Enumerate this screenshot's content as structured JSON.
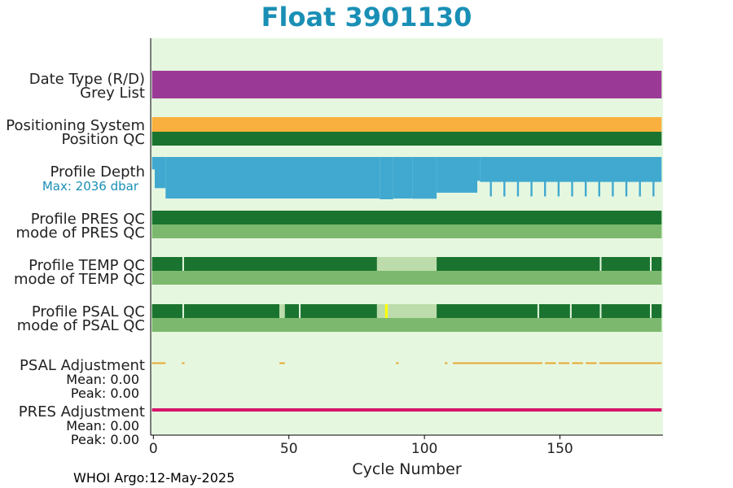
{
  "title": "Float 3901130",
  "footer": "WHOI Argo:12-May-2025",
  "colors": {
    "background": "#e6f7e0",
    "grey_list": "#9b3a96",
    "positioning_system": "#f9b03e",
    "qc_good": "#1a7430",
    "qc_mode": "#7cb96e",
    "qc_light": "#bddcab",
    "qc_flag": "#ffff00",
    "profile_depth": "#41a9d0",
    "psal_adjustment": "#e8a830",
    "pres_adjustment": "#d6156b",
    "accent": "#1a8fb5"
  },
  "chart_data": {
    "type": "bar",
    "title": "Float 3901130",
    "xlabel": "Cycle Number",
    "xlim": [
      -1,
      188
    ],
    "xticks": [
      0,
      50,
      100,
      150
    ],
    "depth_annotation": "Max: 2036 dbar",
    "max_depth_dbar": 2036,
    "rows": [
      {
        "id": "date_type",
        "label": "Date Type (R/D)",
        "status": "blank"
      },
      {
        "id": "grey_list",
        "label": "Grey List",
        "color_key": "grey_list",
        "segments": [
          {
            "from": -0.5,
            "to": 187.5,
            "color_key": "grey_list"
          }
        ]
      },
      {
        "id": "positioning_system",
        "label": "Positioning System",
        "segments": [
          {
            "from": -0.5,
            "to": 187.5,
            "color_key": "positioning_system"
          }
        ]
      },
      {
        "id": "position_qc",
        "label": "Position QC",
        "segments": [
          {
            "from": -0.5,
            "to": 187.5,
            "color_key": "qc_good"
          }
        ]
      },
      {
        "id": "profile_depth",
        "label": "Profile Depth"
      },
      {
        "id": "pres_qc",
        "label": "Profile PRES QC",
        "segments": [
          {
            "from": -0.5,
            "to": 187.5,
            "color_key": "qc_good"
          }
        ]
      },
      {
        "id": "pres_mode",
        "label": "mode of PRES QC",
        "segments": [
          {
            "from": -0.5,
            "to": 187.5,
            "color_key": "qc_mode"
          }
        ]
      },
      {
        "id": "temp_qc",
        "label": "Profile TEMP QC",
        "segments": [
          {
            "from": -0.5,
            "to": 10.7,
            "color_key": "qc_good"
          },
          {
            "from": 11.3,
            "to": 82.5,
            "color_key": "qc_good"
          },
          {
            "from": 82.5,
            "to": 104.5,
            "color_key": "qc_light"
          },
          {
            "from": 104.5,
            "to": 164.7,
            "color_key": "qc_good"
          },
          {
            "from": 165.3,
            "to": 183.2,
            "color_key": "qc_good"
          },
          {
            "from": 183.8,
            "to": 187.5,
            "color_key": "qc_good"
          }
        ]
      },
      {
        "id": "temp_mode",
        "label": "mode of TEMP QC",
        "segments": [
          {
            "from": -0.5,
            "to": 187.5,
            "color_key": "qc_mode"
          }
        ]
      },
      {
        "id": "psal_qc",
        "label": "Profile PSAL QC",
        "segments": [
          {
            "from": -0.5,
            "to": 10.7,
            "color_key": "qc_good"
          },
          {
            "from": 11.3,
            "to": 46.5,
            "color_key": "qc_good"
          },
          {
            "from": 46.5,
            "to": 48.5,
            "color_key": "qc_light"
          },
          {
            "from": 48.5,
            "to": 53.7,
            "color_key": "qc_good"
          },
          {
            "from": 54.3,
            "to": 82.5,
            "color_key": "qc_good"
          },
          {
            "from": 82.5,
            "to": 85.5,
            "color_key": "qc_light"
          },
          {
            "from": 85.5,
            "to": 86.5,
            "color_key": "qc_flag"
          },
          {
            "from": 86.5,
            "to": 104.5,
            "color_key": "qc_light"
          },
          {
            "from": 104.5,
            "to": 141.7,
            "color_key": "qc_good"
          },
          {
            "from": 142.3,
            "to": 153.7,
            "color_key": "qc_good"
          },
          {
            "from": 154.3,
            "to": 164.7,
            "color_key": "qc_good"
          },
          {
            "from": 165.3,
            "to": 183.2,
            "color_key": "qc_good"
          },
          {
            "from": 183.8,
            "to": 187.5,
            "color_key": "qc_good"
          }
        ]
      },
      {
        "id": "psal_mode",
        "label": "mode of PSAL QC",
        "segments": [
          {
            "from": -0.5,
            "to": 187.5,
            "color_key": "qc_mode"
          }
        ]
      },
      {
        "id": "psal_adjustment",
        "label": "PSAL Adjustment",
        "mean_text": "Mean: 0.00",
        "peak_text": "Peak: 0.00",
        "segments": [
          {
            "from": -0.5,
            "to": 4.5,
            "color_key": "psal_adjustment"
          },
          {
            "from": 10.5,
            "to": 11.5,
            "color_key": "psal_adjustment"
          },
          {
            "from": 46.5,
            "to": 48.5,
            "color_key": "psal_adjustment"
          },
          {
            "from": 89.5,
            "to": 90.5,
            "color_key": "psal_adjustment"
          },
          {
            "from": 107.5,
            "to": 108.5,
            "color_key": "psal_adjustment"
          },
          {
            "from": 110.5,
            "to": 119.5,
            "color_key": "psal_adjustment"
          },
          {
            "from": 119.5,
            "to": 143.5,
            "color_key": "psal_adjustment"
          },
          {
            "from": 144.5,
            "to": 148.5,
            "color_key": "psal_adjustment"
          },
          {
            "from": 149.5,
            "to": 153.5,
            "color_key": "psal_adjustment"
          },
          {
            "from": 154.5,
            "to": 158.5,
            "color_key": "psal_adjustment"
          },
          {
            "from": 159.5,
            "to": 163.5,
            "color_key": "psal_adjustment"
          },
          {
            "from": 164.5,
            "to": 187.5,
            "color_key": "psal_adjustment"
          }
        ]
      },
      {
        "id": "pres_adjustment",
        "label": "PRES Adjustment",
        "mean_text": "Mean: 0.00",
        "peak_text": "Peak: 0.00",
        "segments": [
          {
            "from": -0.5,
            "to": 187.5,
            "color_key": "pres_adjustment"
          }
        ]
      }
    ],
    "profile_depth_dbar": [
      {
        "from": -0.5,
        "to": 0.5,
        "depth": 600
      },
      {
        "from": 0.5,
        "to": 4.5,
        "depth": 1500
      },
      {
        "from": 4.5,
        "to": 83.5,
        "depth": 2000
      },
      {
        "from": 83.5,
        "to": 88.5,
        "depth": 2036
      },
      {
        "from": 88.5,
        "to": 95.5,
        "depth": 2000
      },
      {
        "from": 95.5,
        "to": 104.5,
        "depth": 2010
      },
      {
        "from": 104.5,
        "to": 119.5,
        "depth": 1720
      },
      {
        "from": 119.5,
        "to": 120.5,
        "depth": 1150
      },
      {
        "from": 120.5,
        "to": 187.5,
        "depth": 1200
      }
    ],
    "profile_depth_spikes": [
      {
        "cycle": 124.5,
        "depth": 1900
      },
      {
        "cycle": 129.5,
        "depth": 1900
      },
      {
        "cycle": 134.5,
        "depth": 1900
      },
      {
        "cycle": 139.5,
        "depth": 1900
      },
      {
        "cycle": 144.5,
        "depth": 1900
      },
      {
        "cycle": 149.5,
        "depth": 1900
      },
      {
        "cycle": 154.5,
        "depth": 1900
      },
      {
        "cycle": 159.5,
        "depth": 1900
      },
      {
        "cycle": 164.5,
        "depth": 1900
      },
      {
        "cycle": 169.5,
        "depth": 1900
      },
      {
        "cycle": 174.5,
        "depth": 1900
      },
      {
        "cycle": 179.5,
        "depth": 1900
      },
      {
        "cycle": 184.5,
        "depth": 1900
      }
    ]
  }
}
